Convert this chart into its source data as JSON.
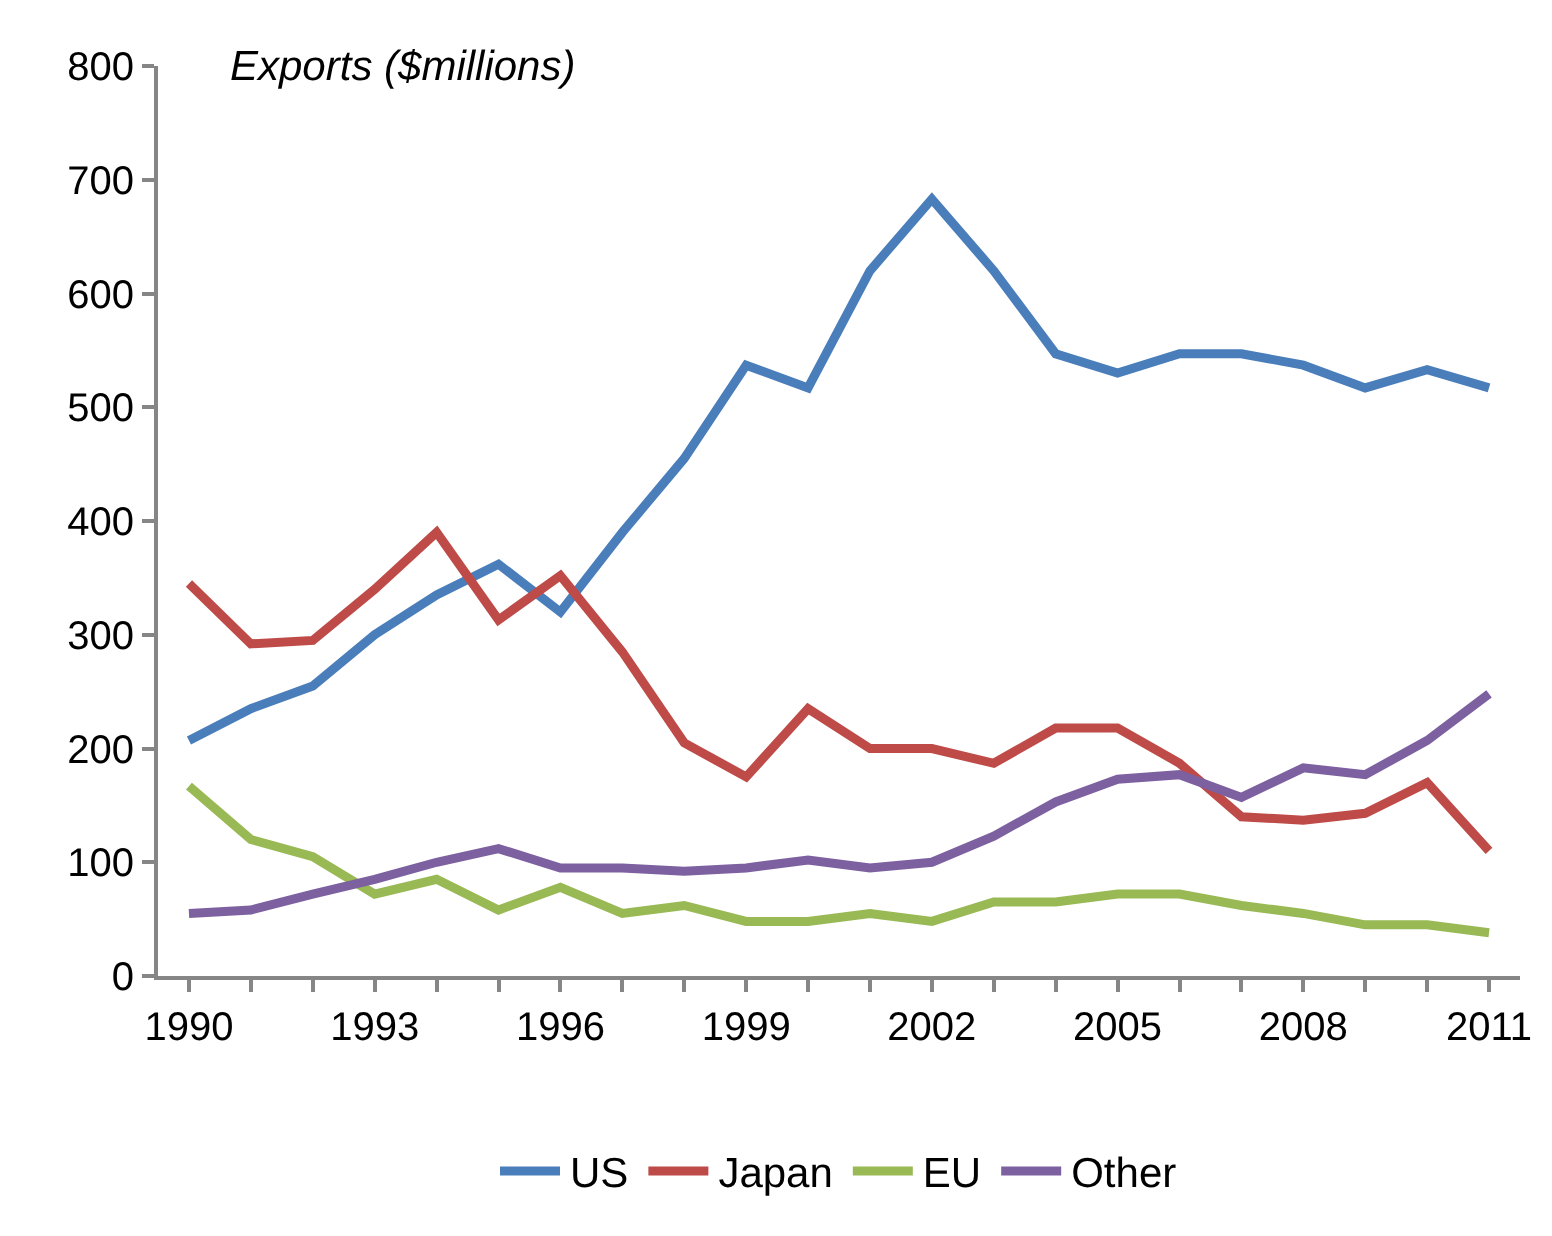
{
  "chart_data": {
    "type": "line",
    "ylabel": "Exports ($millions)",
    "x": [
      1990,
      1991,
      1992,
      1993,
      1994,
      1995,
      1996,
      1997,
      1998,
      1999,
      2000,
      2001,
      2002,
      2003,
      2004,
      2005,
      2006,
      2007,
      2008,
      2009,
      2010,
      2011
    ],
    "series": [
      {
        "name": "US",
        "color": "#4a7ebb",
        "values": [
          207,
          235,
          255,
          300,
          335,
          362,
          320,
          390,
          455,
          537,
          517,
          620,
          683,
          620,
          547,
          530,
          547,
          547,
          537,
          517,
          533,
          517
        ]
      },
      {
        "name": "Japan",
        "color": "#be4b48",
        "values": [
          345,
          292,
          295,
          340,
          390,
          313,
          352,
          285,
          205,
          175,
          235,
          200,
          200,
          187,
          218,
          218,
          187,
          140,
          137,
          143,
          170,
          110
        ]
      },
      {
        "name": "EU",
        "color": "#98b954",
        "values": [
          167,
          120,
          105,
          72,
          85,
          58,
          78,
          55,
          62,
          48,
          48,
          55,
          48,
          65,
          65,
          72,
          72,
          62,
          55,
          45,
          45,
          38
        ]
      },
      {
        "name": "Other",
        "color": "#7d60a0",
        "values": [
          55,
          58,
          72,
          85,
          100,
          112,
          95,
          95,
          92,
          95,
          102,
          95,
          100,
          123,
          153,
          173,
          177,
          157,
          183,
          177,
          207,
          248
        ]
      }
    ],
    "xlim": [
      1989.5,
      2011.5
    ],
    "xticks": [
      1990,
      {
        "value": 1991,
        "label": null
      },
      {
        "value": 1992,
        "label": null
      },
      1993,
      {
        "value": 1994,
        "label": null
      },
      {
        "value": 1995,
        "label": null
      },
      1996,
      {
        "value": 1997,
        "label": null
      },
      {
        "value": 1998,
        "label": null
      },
      1999,
      {
        "value": 2000,
        "label": null
      },
      {
        "value": 2001,
        "label": null
      },
      2002,
      {
        "value": 2003,
        "label": null
      },
      {
        "value": 2004,
        "label": null
      },
      2005,
      {
        "value": 2006,
        "label": null
      },
      {
        "value": 2007,
        "label": null
      },
      2008,
      {
        "value": 2009,
        "label": null
      },
      {
        "value": 2010,
        "label": null
      },
      2011
    ],
    "ylim": [
      0,
      800
    ],
    "yticks": [
      0,
      100,
      200,
      300,
      400,
      500,
      600,
      700,
      800
    ],
    "grid": false,
    "legend": "bottom",
    "marker": "none",
    "line_style": "solid"
  }
}
